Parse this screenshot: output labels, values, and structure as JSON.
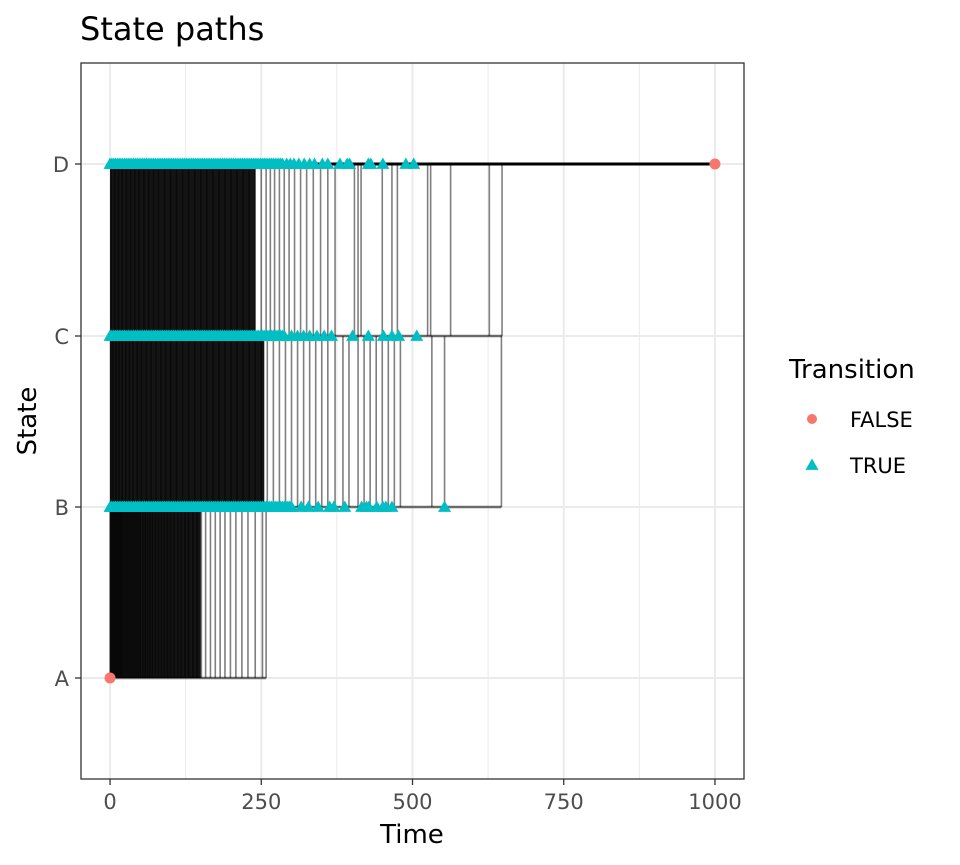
{
  "chart_data": {
    "type": "line",
    "title": "State paths",
    "xlabel": "Time",
    "ylabel": "State",
    "xlim": [
      -48,
      1048
    ],
    "x_ticks": [
      0,
      250,
      500,
      750,
      1000
    ],
    "x_tick_labels": [
      "0",
      "250",
      "500",
      "750",
      "1000"
    ],
    "y_categories": [
      "A",
      "B",
      "C",
      "D"
    ],
    "grid": true,
    "legend": {
      "title": "Transition",
      "position": "right",
      "entries": [
        {
          "label": "FALSE",
          "shape": "circle",
          "color": "#F8766D"
        },
        {
          "label": "TRUE",
          "shape": "triangle",
          "color": "#00BFC4"
        }
      ]
    },
    "series_note": "step paths A→B→C→D; approximate transition times estimated from figure",
    "a_to_b_times": [
      0,
      2,
      4,
      6,
      8,
      10,
      12,
      14,
      16,
      18,
      20,
      23,
      26,
      29,
      32,
      35,
      38,
      41,
      44,
      47,
      50,
      54,
      58,
      62,
      66,
      70,
      75,
      80,
      85,
      90,
      95,
      100,
      106,
      112,
      118,
      124,
      130,
      137,
      144,
      151,
      158,
      166,
      174,
      182,
      190,
      199,
      208,
      218,
      228,
      240,
      252,
      258
    ],
    "b_to_c_times": [
      1,
      5,
      10,
      15,
      20,
      26,
      32,
      38,
      45,
      52,
      60,
      68,
      76,
      84,
      92,
      100,
      110,
      120,
      130,
      140,
      150,
      160,
      170,
      180,
      190,
      200,
      210,
      220,
      230,
      240,
      250,
      260,
      270,
      280,
      290,
      300,
      310,
      320,
      330,
      340,
      350,
      360,
      372,
      385,
      395,
      410,
      420,
      430,
      440,
      450,
      460,
      470,
      480,
      532,
      553,
      647
    ],
    "c_to_d_times": [
      2,
      8,
      14,
      20,
      27,
      34,
      41,
      48,
      56,
      64,
      72,
      80,
      90,
      100,
      110,
      120,
      130,
      140,
      150,
      160,
      170,
      180,
      190,
      200,
      210,
      220,
      230,
      240,
      250,
      258,
      265,
      272,
      280,
      288,
      296,
      305,
      315,
      325,
      336,
      348,
      360,
      372,
      404,
      410,
      415,
      450,
      466,
      475,
      525,
      530,
      563,
      627,
      648
    ],
    "false_points": [
      {
        "x": 0,
        "y": "A"
      },
      {
        "x": 1000,
        "y": "D"
      }
    ],
    "true_triangles_extra": {
      "B": [
        316,
        328,
        344,
        363,
        370,
        388,
        416,
        424,
        428,
        441,
        451,
        456,
        466,
        553
      ],
      "C": [
        300,
        310,
        320,
        330,
        342,
        354,
        366,
        401,
        427,
        452,
        466,
        477,
        507
      ],
      "D": [
        292,
        298,
        304,
        312,
        321,
        330,
        338,
        351,
        360,
        380,
        392,
        396,
        427,
        431,
        451,
        489,
        502
      ]
    }
  }
}
